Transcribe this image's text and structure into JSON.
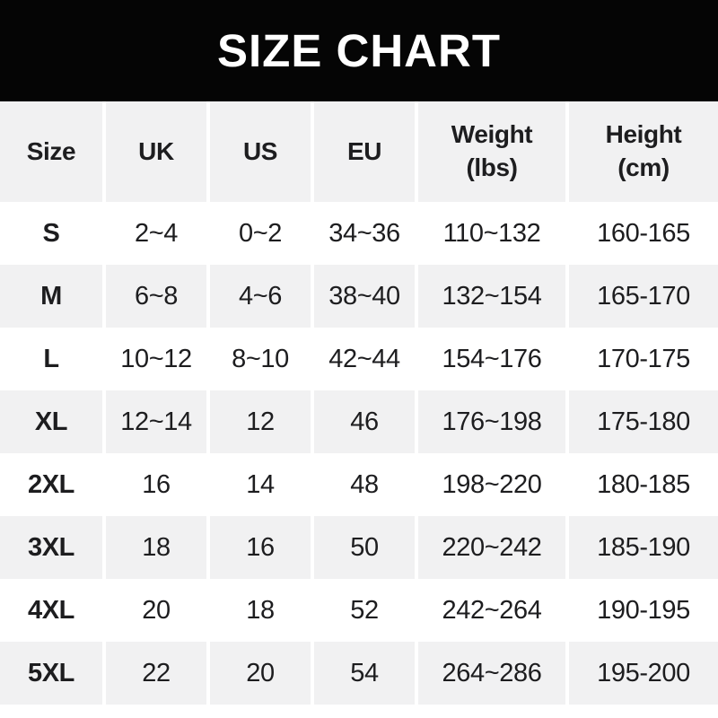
{
  "title": "SIZE CHART",
  "colors": {
    "banner_bg": "#050505",
    "banner_text": "#ffffff",
    "row_bg": "#ffffff",
    "row_alt_bg": "#f1f1f2",
    "text": "#1d1d1f",
    "separator": "#ffffff"
  },
  "chart_data": {
    "type": "table",
    "title": "SIZE CHART",
    "legend_position": "none",
    "columns": [
      {
        "label": "Size",
        "sub": ""
      },
      {
        "label": "UK",
        "sub": ""
      },
      {
        "label": "US",
        "sub": ""
      },
      {
        "label": "EU",
        "sub": ""
      },
      {
        "label": "Weight",
        "sub": "(lbs)"
      },
      {
        "label": "Height",
        "sub": "(cm)"
      }
    ],
    "rows": [
      [
        "S",
        "2~4",
        "0~2",
        "34~36",
        "110~132",
        "160-165"
      ],
      [
        "M",
        "6~8",
        "4~6",
        "38~40",
        "132~154",
        "165-170"
      ],
      [
        "L",
        "10~12",
        "8~10",
        "42~44",
        "154~176",
        "170-175"
      ],
      [
        "XL",
        "12~14",
        "12",
        "46",
        "176~198",
        "175-180"
      ],
      [
        "2XL",
        "16",
        "14",
        "48",
        "198~220",
        "180-185"
      ],
      [
        "3XL",
        "18",
        "16",
        "50",
        "220~242",
        "185-190"
      ],
      [
        "4XL",
        "20",
        "18",
        "52",
        "242~264",
        "190-195"
      ],
      [
        "5XL",
        "22",
        "20",
        "54",
        "264~286",
        "195-200"
      ]
    ]
  }
}
